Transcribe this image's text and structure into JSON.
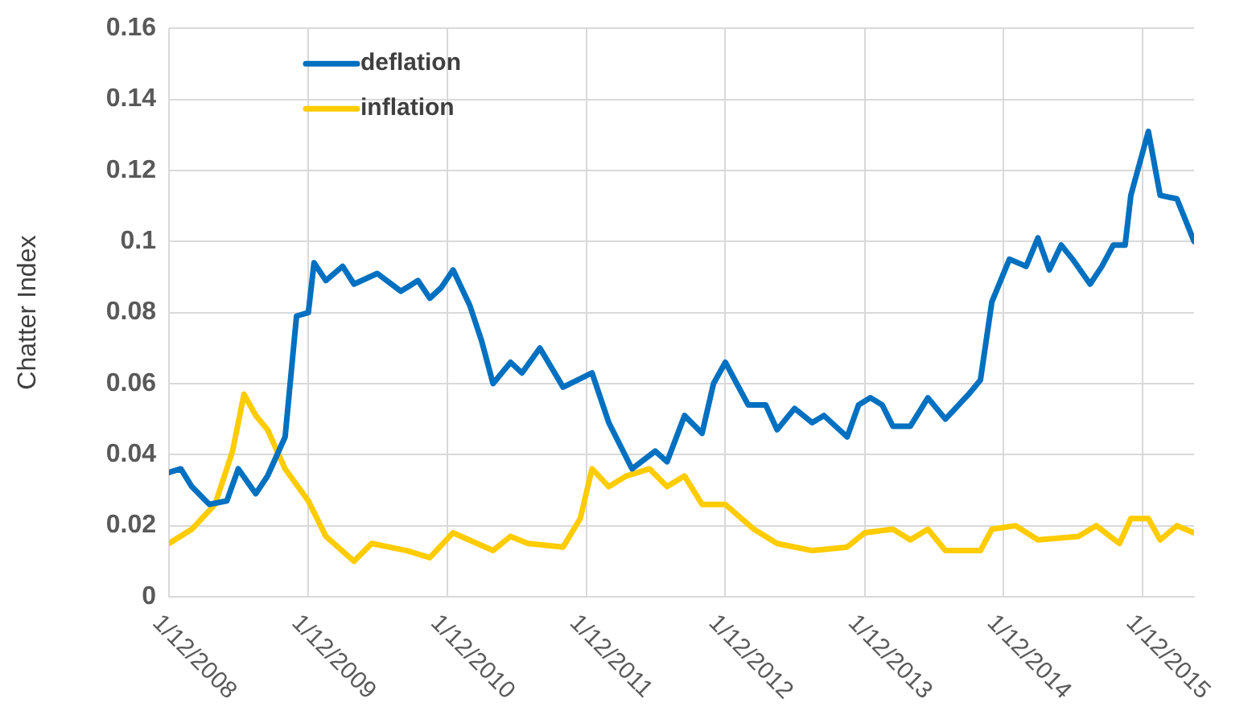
{
  "chart_data": {
    "type": "line",
    "ylabel": "Chatter Index",
    "xlim": [
      "2008-01-12",
      "2015-05-27"
    ],
    "xticks": [
      {
        "value": "2008-01-12",
        "label": "1/12/2008"
      },
      {
        "value": "2009-01-12",
        "label": "1/12/2009"
      },
      {
        "value": "2010-01-12",
        "label": "1/12/2010"
      },
      {
        "value": "2011-01-12",
        "label": "1/12/2011"
      },
      {
        "value": "2012-01-12",
        "label": "1/12/2012"
      },
      {
        "value": "2013-01-12",
        "label": "1/12/2013"
      },
      {
        "value": "2014-01-12",
        "label": "1/12/2014"
      },
      {
        "value": "2015-01-12",
        "label": "1/12/2015"
      }
    ],
    "ylim": [
      0,
      0.16
    ],
    "yticks": [
      0,
      0.02,
      0.04,
      0.06,
      0.08,
      0.1,
      0.12,
      0.14,
      0.16
    ],
    "grid": true,
    "legend": "top left",
    "marker": "none",
    "line_style": "solid",
    "series": [
      {
        "name": "deflation",
        "color": "#0070c0",
        "x": [
          "2008-01-12",
          "2008-02-12",
          "2008-03-12",
          "2008-04-27",
          "2008-06-12",
          "2008-07-12",
          "2008-08-27",
          "2008-09-27",
          "2008-11-12",
          "2008-12-12",
          "2009-01-12",
          "2009-01-27",
          "2009-02-27",
          "2009-04-12",
          "2009-05-12",
          "2009-07-12",
          "2009-09-12",
          "2009-10-27",
          "2009-11-27",
          "2009-12-27",
          "2010-01-27",
          "2010-03-12",
          "2010-04-12",
          "2010-05-12",
          "2010-06-27",
          "2010-07-27",
          "2010-09-12",
          "2010-11-12",
          "2011-01-27",
          "2011-03-12",
          "2011-05-12",
          "2011-07-12",
          "2011-08-12",
          "2011-09-27",
          "2011-11-12",
          "2011-12-12",
          "2012-01-12",
          "2012-03-12",
          "2012-04-27",
          "2012-05-27",
          "2012-07-12",
          "2012-08-27",
          "2012-09-27",
          "2012-11-27",
          "2012-12-27",
          "2013-01-27",
          "2013-02-27",
          "2013-03-27",
          "2013-05-12",
          "2013-06-27",
          "2013-08-12",
          "2013-10-12",
          "2013-11-12",
          "2013-12-12",
          "2014-01-27",
          "2014-03-12",
          "2014-04-12",
          "2014-05-12",
          "2014-06-12",
          "2014-07-12",
          "2014-08-27",
          "2014-09-27",
          "2014-10-27",
          "2014-11-27",
          "2014-12-12",
          "2015-01-27",
          "2015-02-27",
          "2015-04-12",
          "2015-05-27"
        ],
        "values": [
          0.035,
          0.036,
          0.031,
          0.026,
          0.027,
          0.036,
          0.029,
          0.034,
          0.045,
          0.079,
          0.08,
          0.094,
          0.089,
          0.093,
          0.088,
          0.091,
          0.086,
          0.089,
          0.084,
          0.087,
          0.092,
          0.082,
          0.072,
          0.06,
          0.066,
          0.063,
          0.07,
          0.059,
          0.063,
          0.049,
          0.036,
          0.041,
          0.038,
          0.051,
          0.046,
          0.06,
          0.066,
          0.054,
          0.054,
          0.047,
          0.053,
          0.049,
          0.051,
          0.045,
          0.054,
          0.056,
          0.054,
          0.048,
          0.048,
          0.056,
          0.05,
          0.057,
          0.061,
          0.083,
          0.095,
          0.093,
          0.101,
          0.092,
          0.099,
          0.095,
          0.088,
          0.093,
          0.099,
          0.099,
          0.113,
          0.131,
          0.113,
          0.112,
          0.1
        ]
      },
      {
        "name": "inflation",
        "color": "#ffcc00",
        "x": [
          "2008-01-12",
          "2008-03-12",
          "2008-05-12",
          "2008-06-27",
          "2008-07-27",
          "2008-08-27",
          "2008-09-27",
          "2008-11-12",
          "2009-01-12",
          "2009-02-27",
          "2009-05-12",
          "2009-06-27",
          "2009-09-27",
          "2009-11-27",
          "2010-01-27",
          "2010-05-12",
          "2010-06-27",
          "2010-08-12",
          "2010-11-12",
          "2010-12-27",
          "2011-01-27",
          "2011-03-12",
          "2011-04-27",
          "2011-06-27",
          "2011-08-12",
          "2011-09-27",
          "2011-11-12",
          "2012-01-12",
          "2012-03-27",
          "2012-05-27",
          "2012-08-27",
          "2012-11-27",
          "2013-01-12",
          "2013-03-27",
          "2013-05-12",
          "2013-06-27",
          "2013-08-12",
          "2013-11-12",
          "2013-12-12",
          "2014-02-12",
          "2014-04-12",
          "2014-07-27",
          "2014-09-12",
          "2014-11-12",
          "2014-12-12",
          "2015-01-27",
          "2015-02-27",
          "2015-04-12",
          "2015-05-27"
        ],
        "values": [
          0.015,
          0.019,
          0.026,
          0.041,
          0.057,
          0.051,
          0.047,
          0.036,
          0.027,
          0.017,
          0.01,
          0.015,
          0.013,
          0.011,
          0.018,
          0.013,
          0.017,
          0.015,
          0.014,
          0.022,
          0.036,
          0.031,
          0.034,
          0.036,
          0.031,
          0.034,
          0.026,
          0.026,
          0.019,
          0.015,
          0.013,
          0.014,
          0.018,
          0.019,
          0.016,
          0.019,
          0.013,
          0.013,
          0.019,
          0.02,
          0.016,
          0.017,
          0.02,
          0.015,
          0.022,
          0.022,
          0.016,
          0.02,
          0.018
        ]
      }
    ]
  }
}
